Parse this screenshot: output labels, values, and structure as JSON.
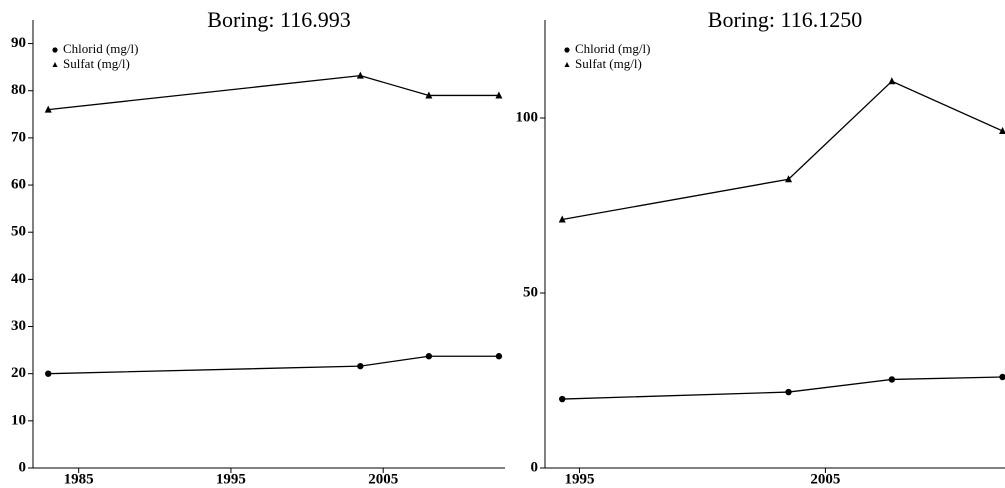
{
  "chart_data": [
    {
      "type": "line",
      "title": "Boring: 116.993",
      "x": [
        1983,
        2003.5,
        2008,
        2012.6
      ],
      "series": [
        {
          "name": "Chlorid (mg/l)",
          "color": "#000000",
          "marker": "circle",
          "values": [
            20,
            21.6,
            23.7,
            23.7
          ]
        },
        {
          "name": "Sulfat (mg/l)",
          "color": "#000000",
          "marker": "triangle",
          "values": [
            76,
            83.2,
            79,
            79
          ]
        }
      ],
      "xlim": [
        1982,
        2013
      ],
      "xticks": [
        1985,
        1995,
        2005
      ],
      "ylim": [
        0,
        95
      ],
      "yticks": [
        0,
        10,
        20,
        30,
        40,
        50,
        60,
        70,
        80,
        90
      ],
      "grid": false,
      "legend": "upper left"
    },
    {
      "type": "line",
      "title": "Boring: 116.1250",
      "x": [
        1994.3,
        2003.5,
        2007.7,
        2012.2
      ],
      "series": [
        {
          "name": "Chlorid (mg/l)",
          "color": "#000000",
          "marker": "circle",
          "values": [
            19.7,
            21.7,
            25.3,
            26
          ]
        },
        {
          "name": "Sulfat (mg/l)",
          "color": "#000000",
          "marker": "triangle",
          "values": [
            71,
            82.5,
            110.5,
            96.3
          ]
        }
      ],
      "xlim": [
        1993.6,
        2012.3
      ],
      "xticks": [
        1995,
        2005
      ],
      "ylim": [
        0,
        128
      ],
      "yticks": [
        0,
        50,
        100
      ],
      "grid": false,
      "legend": "upper left"
    }
  ]
}
